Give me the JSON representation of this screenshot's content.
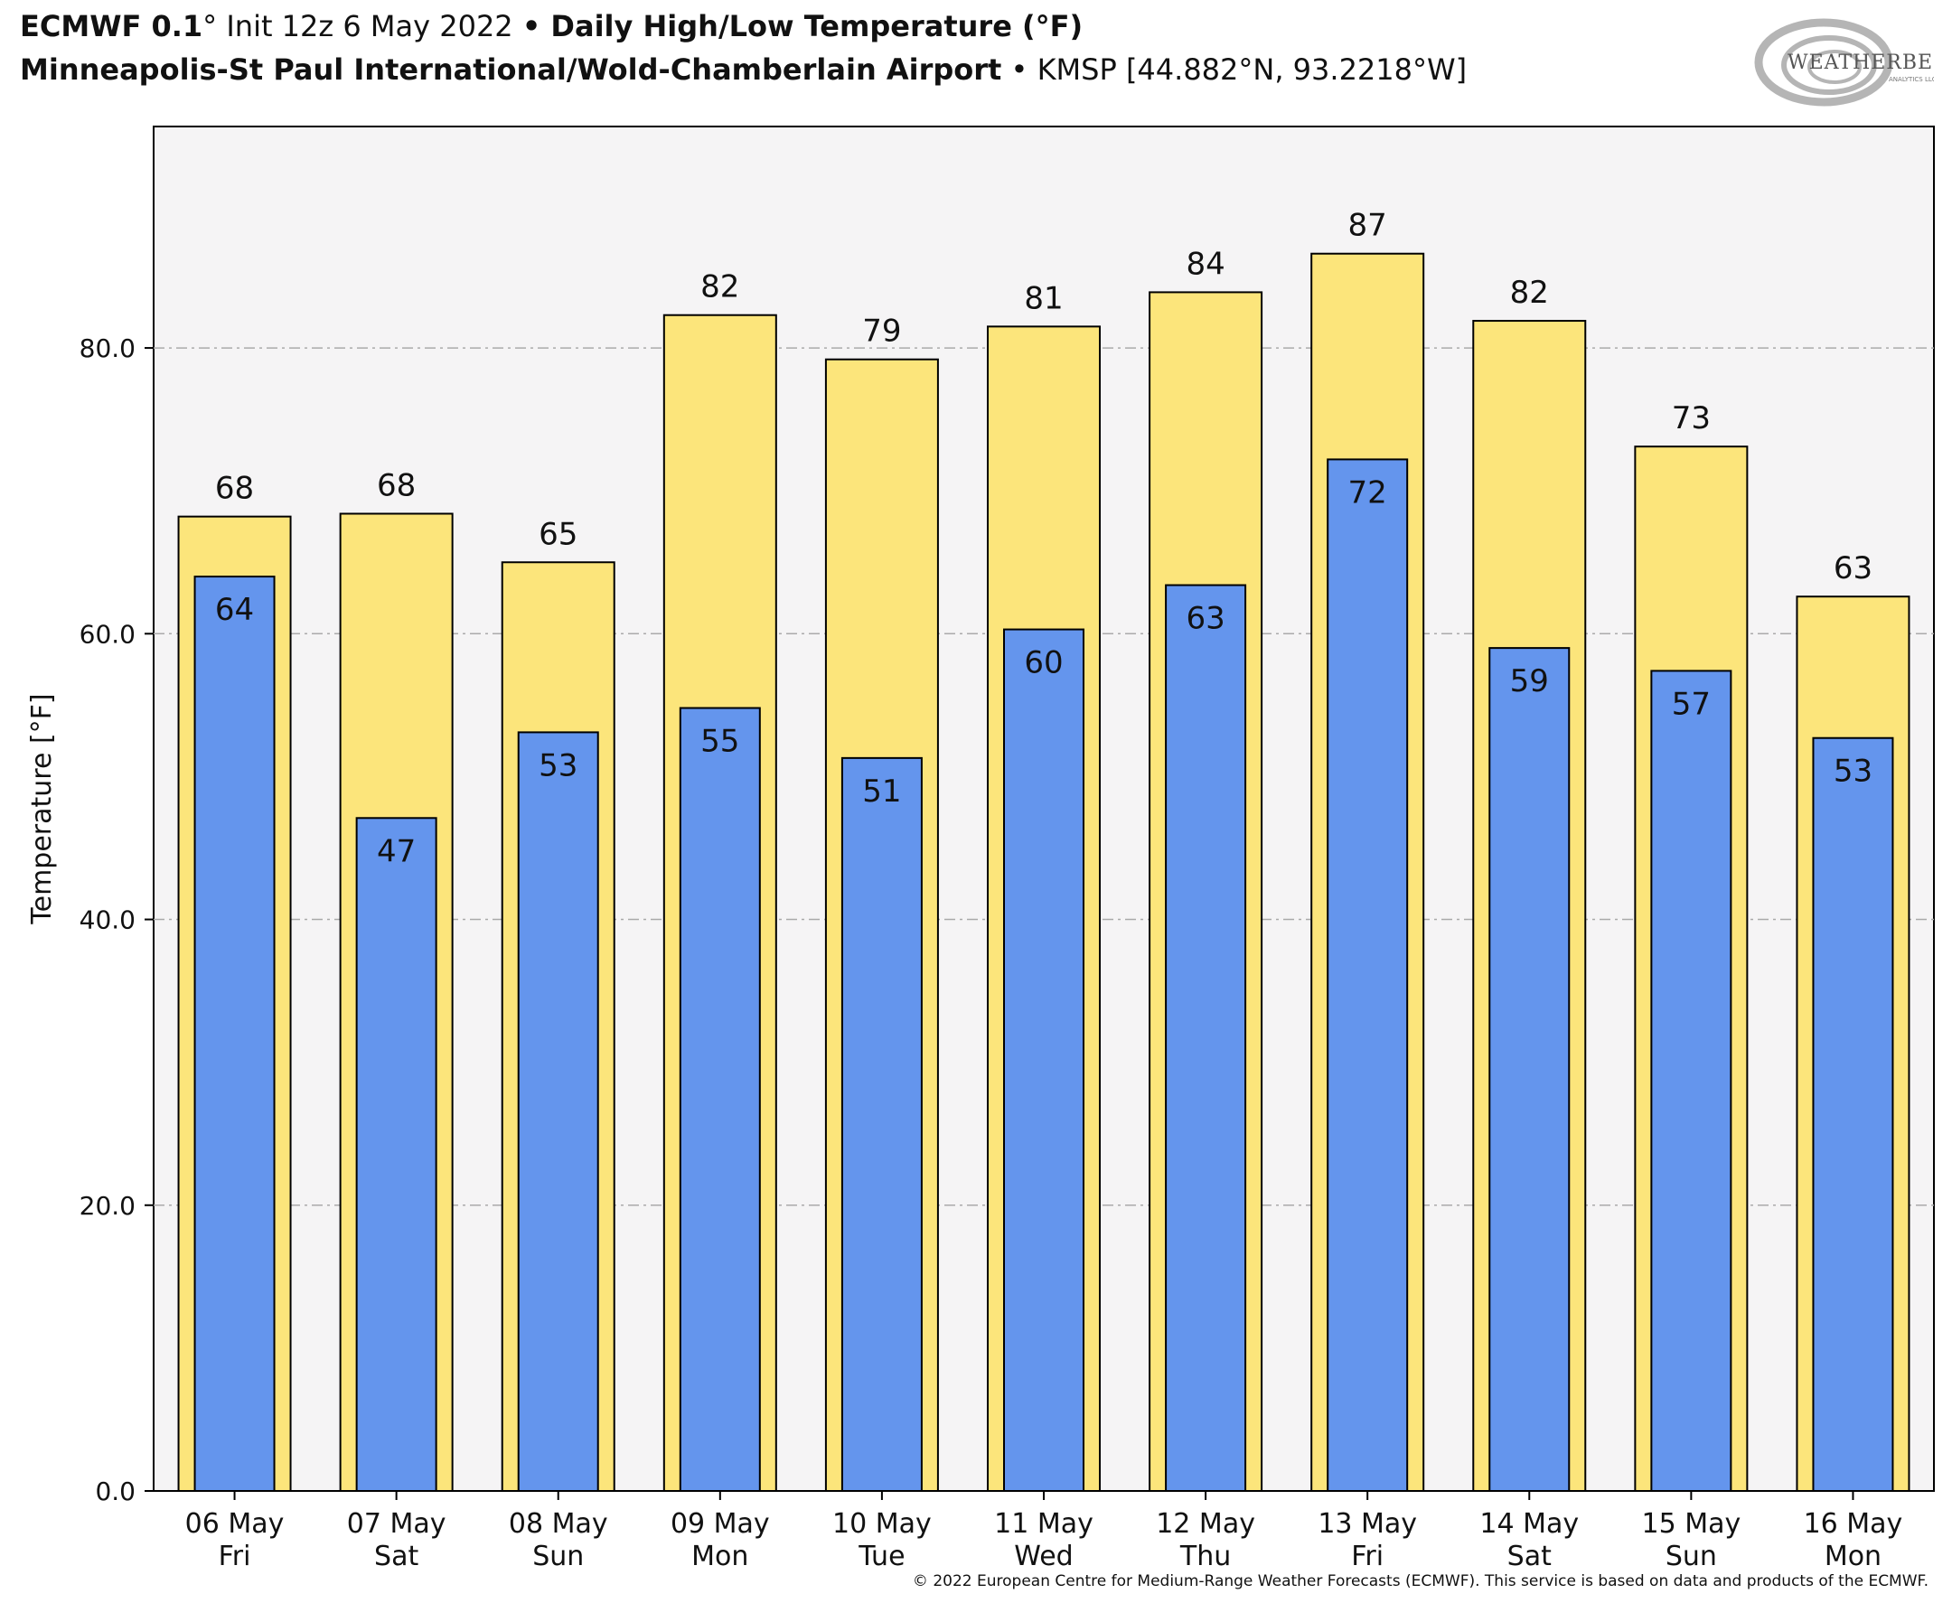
{
  "header": {
    "model": "ECMWF 0.1",
    "deg": "°",
    "init": " Init 12z 6 May 2022 ",
    "bullet1": "•",
    "product": " Daily High/Low Temperature (°F)",
    "station": "Minneapolis-St Paul International/Wold-Chamberlain Airport",
    "bullet2": " • ",
    "station_id": "KMSP [44.882°N, 93.2218°W]"
  },
  "logo": {
    "text": "WEATHERBELL",
    "sub": "ANALYTICS LLC"
  },
  "footer": {
    "copyright": "© 2022 European Centre for Medium-Range Weather Forecasts (ECMWF). This service is based on data and products of the ECMWF."
  },
  "colors": {
    "high": "#fce57b",
    "low": "#6495ed",
    "plot_bg": "#f5f4f5",
    "grid": "#aaaaaa"
  },
  "chart_data": {
    "type": "bar",
    "ylabel": "Temperature [°F]",
    "ylim": [
      0,
      95.5
    ],
    "yticks": [
      0,
      20,
      40,
      60,
      80
    ],
    "ytick_labels": [
      "0.0",
      "20.0",
      "40.0",
      "60.0",
      "80.0"
    ],
    "grid": "horizontal dashed",
    "categories": [
      {
        "date": "06 May",
        "day": "Fri"
      },
      {
        "date": "07 May",
        "day": "Sat"
      },
      {
        "date": "08 May",
        "day": "Sun"
      },
      {
        "date": "09 May",
        "day": "Mon"
      },
      {
        "date": "10 May",
        "day": "Tue"
      },
      {
        "date": "11 May",
        "day": "Wed"
      },
      {
        "date": "12 May",
        "day": "Thu"
      },
      {
        "date": "13 May",
        "day": "Fri"
      },
      {
        "date": "14 May",
        "day": "Sat"
      },
      {
        "date": "15 May",
        "day": "Sun"
      },
      {
        "date": "16 May",
        "day": "Mon"
      }
    ],
    "series": [
      {
        "values": [
          68.2,
          68.4,
          65.0,
          82.3,
          79.2,
          81.5,
          83.9,
          86.6,
          81.9,
          73.1,
          62.6
        ],
        "labels": [
          "68",
          "68",
          "65",
          "82",
          "79",
          "81",
          "84",
          "87",
          "82",
          "73",
          "63"
        ]
      },
      {
        "values": [
          64.0,
          47.1,
          53.1,
          54.8,
          51.3,
          60.3,
          63.4,
          72.2,
          59.0,
          57.4,
          52.7
        ],
        "labels": [
          "64",
          "47",
          "53",
          "55",
          "51",
          "60",
          "63",
          "72",
          "59",
          "57",
          "53"
        ]
      }
    ]
  }
}
